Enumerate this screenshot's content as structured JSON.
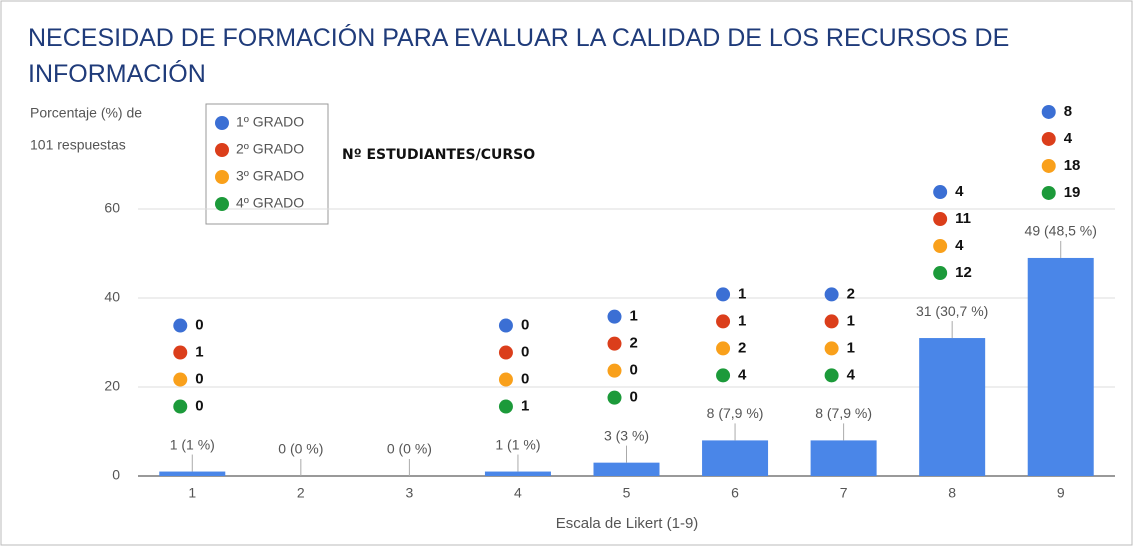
{
  "chart_data": {
    "type": "bar",
    "title": "NECESIDAD DE FORMACIÓN PARA EVALUAR LA CALIDAD DE LOS RECURSOS DE INFORMACIÓN",
    "y_label_lines": [
      "Porcentaje (%) de",
      "101 respuestas"
    ],
    "x_label": "Escala de Likert (1-9)",
    "annotation": "Nº ESTUDIANTES/CURSO",
    "categories": [
      "1",
      "2",
      "3",
      "4",
      "5",
      "6",
      "7",
      "8",
      "9"
    ],
    "values": [
      1,
      0,
      0,
      1,
      3,
      8,
      8,
      31,
      49
    ],
    "value_labels": [
      "1 (1 %)",
      "0 (0 %)",
      "0 (0 %)",
      "1 (1 %)",
      "3 (3 %)",
      "8 (7,9 %)",
      "8 (7,9 %)",
      "31 (30,7 %)",
      "49 (48,5 %)"
    ],
    "color": "#4a86e8",
    "ylim": [
      0,
      60
    ],
    "yticks": [
      0,
      20,
      40,
      60
    ],
    "grid": true,
    "series": [
      {
        "name": "1º GRADO",
        "color": "#3b6fd4",
        "values": [
          0,
          null,
          null,
          0,
          1,
          1,
          2,
          4,
          8
        ]
      },
      {
        "name": "2º GRADO",
        "color": "#db3e1b",
        "values": [
          1,
          null,
          null,
          0,
          2,
          1,
          1,
          11,
          4
        ]
      },
      {
        "name": "3º GRADO",
        "color": "#f9a01b",
        "values": [
          0,
          null,
          null,
          0,
          0,
          2,
          1,
          4,
          18
        ]
      },
      {
        "name": "4º GRADO",
        "color": "#1c9a3a",
        "values": [
          0,
          null,
          null,
          1,
          0,
          4,
          4,
          12,
          19
        ]
      }
    ]
  }
}
